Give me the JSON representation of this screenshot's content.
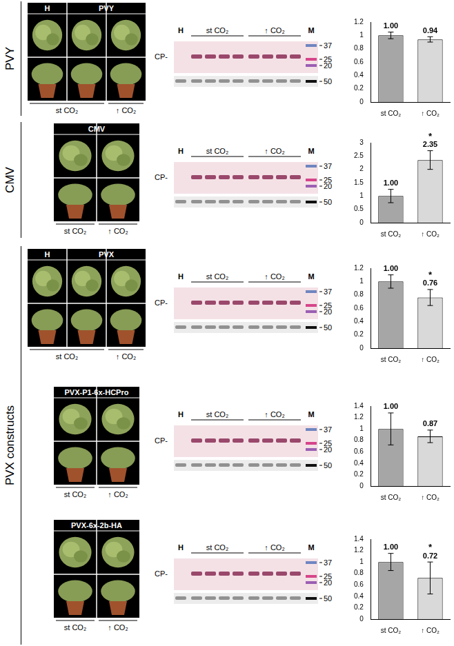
{
  "chart_data": [
    {
      "type": "bar",
      "categories": [
        "st CO₂",
        "↑ CO₂"
      ],
      "values": [
        1.0,
        0.94
      ],
      "value_labels": [
        "1.00",
        "0.94"
      ],
      "errors": [
        0.05,
        0.04
      ],
      "colors": [
        "#a6a6a6",
        "#d9d9d9"
      ],
      "ylim": [
        0,
        1.2
      ],
      "yticks": [
        0,
        0.2,
        0.4,
        0.6,
        0.8,
        1,
        1.2
      ],
      "grid": false,
      "data_labels": true
    },
    {
      "type": "bar",
      "categories": [
        "st CO₂",
        "↑ CO₂"
      ],
      "values": [
        1.0,
        2.35
      ],
      "value_labels": [
        "1.00",
        "2.35"
      ],
      "errors": [
        0.25,
        0.35
      ],
      "colors": [
        "#a6a6a6",
        "#d9d9d9"
      ],
      "ylim": [
        0,
        3
      ],
      "yticks": [
        0,
        0.5,
        1,
        1.5,
        2,
        2.5,
        3
      ],
      "grid": false,
      "data_labels": true,
      "annotations": [
        {
          "category": "↑ CO₂",
          "text": "*"
        }
      ]
    },
    {
      "type": "bar",
      "categories": [
        "st CO₂",
        "↑ CO₂"
      ],
      "values": [
        1.0,
        0.76
      ],
      "value_labels": [
        "1.00",
        "0.76"
      ],
      "errors": [
        0.1,
        0.12
      ],
      "colors": [
        "#a6a6a6",
        "#d9d9d9"
      ],
      "ylim": [
        0,
        1.2
      ],
      "yticks": [
        0,
        0.2,
        0.4,
        0.6,
        0.8,
        1,
        1.2
      ],
      "grid": false,
      "data_labels": true,
      "annotations": [
        {
          "category": "↑ CO₂",
          "text": "*"
        }
      ]
    },
    {
      "type": "bar",
      "categories": [
        "st CO₂",
        "↑ CO₂"
      ],
      "values": [
        1.0,
        0.87
      ],
      "value_labels": [
        "1.00",
        "0.87"
      ],
      "errors": [
        0.28,
        0.11
      ],
      "colors": [
        "#a6a6a6",
        "#d9d9d9"
      ],
      "ylim": [
        0,
        1.4
      ],
      "yticks": [
        0,
        0.2,
        0.4,
        0.6,
        0.8,
        1,
        1.2,
        1.4
      ],
      "grid": false,
      "data_labels": true
    },
    {
      "type": "bar",
      "categories": [
        "st CO₂",
        "↑ CO₂"
      ],
      "values": [
        1.0,
        0.72
      ],
      "value_labels": [
        "1.00",
        "0.72"
      ],
      "errors": [
        0.15,
        0.28
      ],
      "colors": [
        "#a6a6a6",
        "#d9d9d9"
      ],
      "ylim": [
        0,
        1.4
      ],
      "yticks": [
        0,
        0.2,
        0.4,
        0.6,
        0.8,
        1,
        1.2,
        1.4
      ],
      "grid": false,
      "data_labels": true,
      "annotations": [
        {
          "category": "↑ CO₂",
          "text": "*"
        }
      ]
    }
  ],
  "figure": {
    "sections": [
      {
        "label": "PVY",
        "panels": [
          {
            "photo": {
              "columns": 3,
              "headers": [
                {
                  "text": "H",
                  "span": 1
                },
                {
                  "text": "PVY",
                  "span": 2
                }
              ],
              "footers": [
                {
                  "text": "st CO₂",
                  "span": 2
                },
                {
                  "text": "↑ CO₂",
                  "span": 1
                }
              ]
            },
            "blot": {
              "band_label": "CP-",
              "lanes": [
                {
                  "text": "H",
                  "count": 1
                },
                {
                  "text": "st CO₂",
                  "count": 4
                },
                {
                  "text": "↑ CO₂",
                  "count": 4
                }
              ],
              "marker": "M",
              "marker_kda": [
                37,
                25,
                20,
                50
              ]
            }
          }
        ]
      },
      {
        "label": "CMV",
        "panels": [
          {
            "photo": {
              "columns": 2,
              "headers": [
                {
                  "text": "CMV",
                  "span": 2
                }
              ],
              "footers": [
                {
                  "text": "st CO₂",
                  "span": 1
                },
                {
                  "text": "↑ CO₂",
                  "span": 1
                }
              ]
            },
            "blot": {
              "band_label": "CP-",
              "lanes": [
                {
                  "text": "H",
                  "count": 1
                },
                {
                  "text": "st CO₂",
                  "count": 4
                },
                {
                  "text": "↑ CO₂",
                  "count": 4
                }
              ],
              "marker": "M",
              "marker_kda": [
                37,
                25,
                20,
                50
              ]
            }
          }
        ]
      },
      {
        "label": "PVX constructs",
        "panels": [
          {
            "photo": {
              "columns": 3,
              "headers": [
                {
                  "text": "H",
                  "span": 1
                },
                {
                  "text": "PVX",
                  "span": 2
                }
              ],
              "footers": [
                {
                  "text": "st CO₂",
                  "span": 2
                },
                {
                  "text": "↑ CO₂",
                  "span": 1
                }
              ]
            },
            "blot": {
              "band_label": "CP-",
              "lanes": [
                {
                  "text": "H",
                  "count": 1
                },
                {
                  "text": "st CO₂",
                  "count": 4
                },
                {
                  "text": "↑ CO₂",
                  "count": 4
                }
              ],
              "marker": "M",
              "marker_kda": [
                37,
                25,
                20,
                50
              ]
            }
          },
          {
            "photo": {
              "columns": 2,
              "headers": [
                {
                  "text": "PVX-P1-6x-HCPro",
                  "span": 2
                }
              ],
              "footers": [
                {
                  "text": "st CO₂",
                  "span": 1
                },
                {
                  "text": "↑ CO₂",
                  "span": 1
                }
              ]
            },
            "blot": {
              "band_label": "CP-",
              "lanes": [
                {
                  "text": "H",
                  "count": 1
                },
                {
                  "text": "st CO₂",
                  "count": 4
                },
                {
                  "text": "↑ CO₂",
                  "count": 4
                }
              ],
              "marker": "M",
              "marker_kda": [
                37,
                25,
                20,
                50
              ]
            }
          },
          {
            "photo": {
              "columns": 2,
              "headers": [
                {
                  "text": "PVX-6x-2b-HA",
                  "span": 2
                }
              ],
              "footers": [
                {
                  "text": "st CO₂",
                  "span": 1
                },
                {
                  "text": "↑ CO₂",
                  "span": 1
                }
              ]
            },
            "blot": {
              "band_label": "CP-",
              "lanes": [
                {
                  "text": "H",
                  "count": 1
                },
                {
                  "text": "st CO₂",
                  "count": 4
                },
                {
                  "text": "↑ CO₂",
                  "count": 4
                }
              ],
              "marker": "M",
              "marker_kda": [
                37,
                25,
                20,
                50
              ]
            }
          }
        ]
      }
    ]
  }
}
